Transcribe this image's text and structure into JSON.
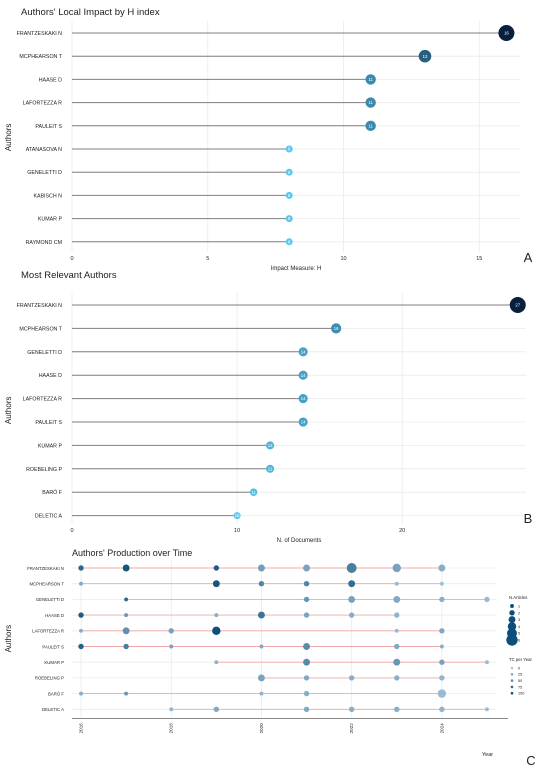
{
  "chart_data": [
    {
      "type": "scatter",
      "panel_label": "A",
      "title": "Authors' Local Impact by H index",
      "xlabel": "Impact Measure: H",
      "ylabel": "Authors",
      "xlim": [
        0,
        16.5
      ],
      "xticks": [
        "0",
        "5",
        "10",
        "15"
      ],
      "categories": [
        "FRANTZESKAKI N",
        "MCPHEARSON T",
        "HAASE D",
        "LAFORTEZZA R",
        "PAULEIT S",
        "ATANASOVA N",
        "GENELETTI D",
        "KABISCH N",
        "KUMAR P",
        "RAYMOND CM"
      ],
      "values": [
        16,
        13,
        11,
        11,
        11,
        8,
        8,
        8,
        8,
        8
      ],
      "value_labels": [
        "16",
        "13",
        "11",
        "11",
        "11",
        "8",
        "8",
        "8",
        "8",
        "8"
      ]
    },
    {
      "type": "scatter",
      "panel_label": "B",
      "title": "Most Relevant Authors",
      "xlabel": "N. of Documents",
      "ylabel": "Authors",
      "xlim": [
        0,
        27.5
      ],
      "xticks": [
        "0",
        "10",
        "20"
      ],
      "categories": [
        "FRANTZESKAKI N",
        "MCPHEARSON T",
        "GENELETTI D",
        "HAASE D",
        "LAFORTEZZA R",
        "PAULEIT S",
        "KUMAR P",
        "ROEBELING P",
        "BARÓ F",
        "DELETIC A"
      ],
      "values": [
        27,
        16,
        14,
        14,
        14,
        14,
        12,
        12,
        11,
        10
      ],
      "value_labels": [
        "27",
        "16",
        "14",
        "14",
        "14",
        "14",
        "12",
        "12",
        "11",
        "10"
      ]
    },
    {
      "type": "scatter",
      "panel_label": "C",
      "title": "Authors' Production over Time",
      "xlabel": "Year",
      "ylabel": "Authors",
      "xlim": [
        2015.8,
        2025.2
      ],
      "xticks": [
        "2016",
        "2018",
        "2020",
        "2022",
        "2024"
      ],
      "categories": [
        "FRANTZESKAKI N",
        "MCPHEARSON T",
        "GENELETTI D",
        "HAASE D",
        "LAFORTEZZA R",
        "PAULEIT S",
        "KUMAR P",
        "ROEBELING P",
        "BARÓ F",
        "DELETIC A"
      ],
      "legend_articles_title": "N.Articles",
      "legend_articles": [
        "1",
        "2",
        "3",
        "4",
        "5",
        "6"
      ],
      "legend_tc_title": "TC per Year",
      "legend_tc": [
        "0",
        "25",
        "50",
        "75",
        "100"
      ],
      "points": [
        {
          "author": "FRANTZESKAKI N",
          "years": [
            2016,
            2017,
            2019,
            2020,
            2021,
            2022,
            2023,
            2024
          ],
          "articles": [
            2,
            3,
            2,
            3,
            3,
            5,
            4,
            3
          ],
          "tc": [
            80,
            95,
            90,
            35,
            30,
            60,
            30,
            20
          ]
        },
        {
          "author": "MCPHEARSON T",
          "years": [
            2016,
            2019,
            2020,
            2021,
            2022,
            2023,
            2024
          ],
          "articles": [
            1,
            3,
            2,
            2,
            3,
            1,
            1
          ],
          "tc": [
            25,
            95,
            55,
            55,
            75,
            10,
            5
          ]
        },
        {
          "author": "GENELETTI D",
          "years": [
            2017,
            2021,
            2022,
            2023,
            2024,
            2025
          ],
          "articles": [
            1,
            2,
            3,
            3,
            2,
            2
          ],
          "tc": [
            80,
            40,
            30,
            25,
            20,
            10
          ]
        },
        {
          "author": "HAASE D",
          "years": [
            2016,
            2017,
            2019,
            2020,
            2021,
            2022,
            2023
          ],
          "articles": [
            2,
            1,
            1,
            3,
            2,
            2,
            2
          ],
          "tc": [
            90,
            40,
            20,
            70,
            30,
            20,
            15
          ]
        },
        {
          "author": "LAFORTEZZA R",
          "years": [
            2016,
            2017,
            2018,
            2019,
            2023,
            2024
          ],
          "articles": [
            1,
            3,
            2,
            4,
            1,
            2
          ],
          "tc": [
            20,
            45,
            30,
            100,
            10,
            25
          ]
        },
        {
          "author": "PAULEIT S",
          "years": [
            2016,
            2017,
            2018,
            2020,
            2021,
            2023,
            2024
          ],
          "articles": [
            2,
            2,
            1,
            1,
            3,
            2,
            1
          ],
          "tc": [
            85,
            60,
            30,
            25,
            50,
            25,
            20
          ]
        },
        {
          "author": "KUMAR P",
          "years": [
            2019,
            2021,
            2023,
            2024,
            2025
          ],
          "articles": [
            1,
            3,
            3,
            2,
            1
          ],
          "tc": [
            15,
            50,
            40,
            30,
            10
          ]
        },
        {
          "author": "ROEBELING P",
          "years": [
            2020,
            2021,
            2022,
            2023,
            2024
          ],
          "articles": [
            3,
            2,
            2,
            2,
            2
          ],
          "tc": [
            30,
            25,
            20,
            20,
            15
          ]
        },
        {
          "author": "BARÓ F",
          "years": [
            2016,
            2017,
            2020,
            2021,
            2024
          ],
          "articles": [
            1,
            1,
            1,
            2,
            4
          ],
          "tc": [
            20,
            40,
            15,
            20,
            10
          ]
        },
        {
          "author": "DELETIC A",
          "years": [
            2018,
            2019,
            2021,
            2022,
            2023,
            2024,
            2025
          ],
          "articles": [
            1,
            2,
            2,
            2,
            2,
            2,
            1
          ],
          "tc": [
            15,
            25,
            25,
            20,
            20,
            15,
            10
          ]
        }
      ]
    }
  ],
  "colors": {
    "bg": "#ffffff",
    "grid": "#ebebeb",
    "stem": "#7f7f7f",
    "stem_time": "#f0a8a8",
    "dot_low": "#5bc8f0",
    "dot_high": "#08203e",
    "text": "#222222"
  }
}
